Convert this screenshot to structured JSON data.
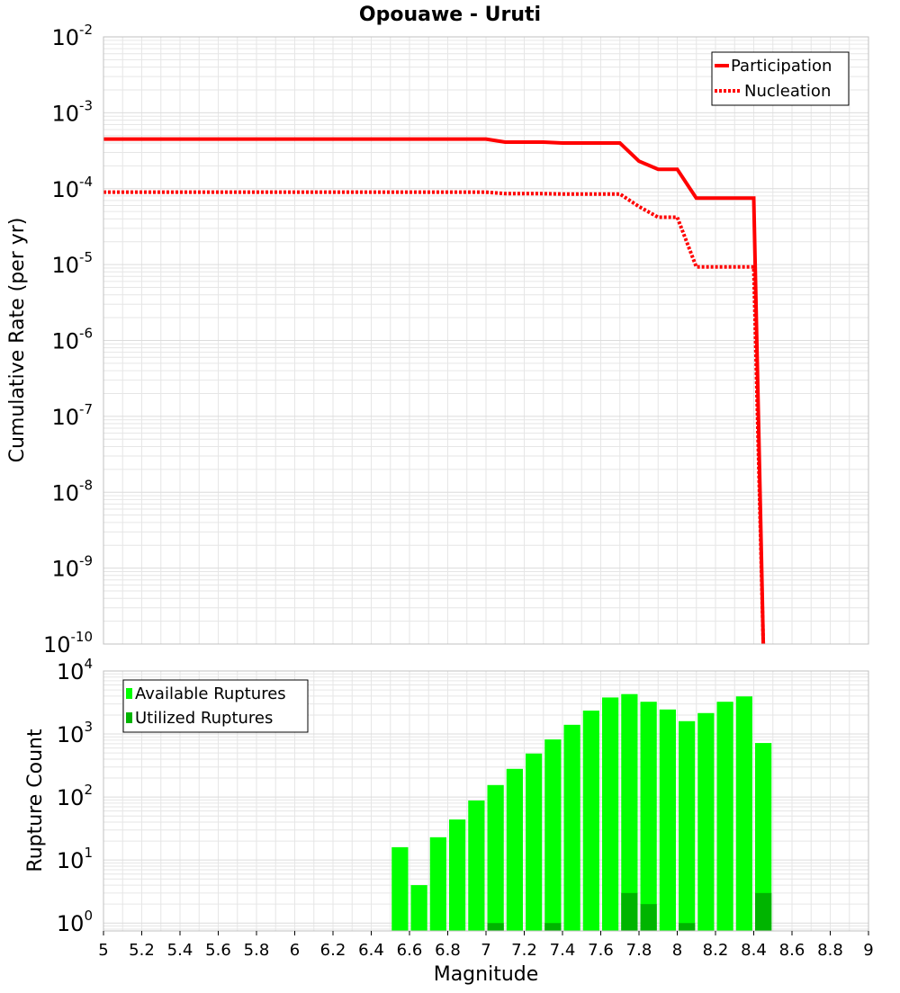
{
  "title": "Opouawe - Uruti",
  "colors": {
    "participation": "#ff0000",
    "nucleation": "#ff0000",
    "available": "#00ff00",
    "utilized": "#00b400",
    "grid": "#e6e6e6",
    "frame": "#c0c0c0"
  },
  "chart_data": [
    {
      "type": "line",
      "title": "Opouawe - Uruti",
      "xlabel": "",
      "ylabel": "Cumulative Rate (per yr)",
      "xlim": [
        5,
        9
      ],
      "ylim": [
        1e-10,
        0.01
      ],
      "yscale": "log",
      "y_ticks": [
        {
          "base": "10",
          "exp": "-10",
          "value": 1e-10
        },
        {
          "base": "10",
          "exp": "-9",
          "value": 1e-09
        },
        {
          "base": "10",
          "exp": "-8",
          "value": 1e-08
        },
        {
          "base": "10",
          "exp": "-7",
          "value": 1e-07
        },
        {
          "base": "10",
          "exp": "-6",
          "value": 1e-06
        },
        {
          "base": "10",
          "exp": "-5",
          "value": 1e-05
        },
        {
          "base": "10",
          "exp": "-4",
          "value": 0.0001
        },
        {
          "base": "10",
          "exp": "-3",
          "value": 0.001
        },
        {
          "base": "10",
          "exp": "-2",
          "value": 0.01
        }
      ],
      "legend": {
        "position": "top-right",
        "entries": [
          "Participation",
          "Nucleation"
        ]
      },
      "grid": true,
      "series": [
        {
          "name": "Participation",
          "style": "solid",
          "x": [
            5.0,
            7.0,
            7.1,
            7.3,
            7.4,
            7.5,
            7.6,
            7.7,
            7.8,
            7.9,
            8.0,
            8.1,
            8.2,
            8.3,
            8.4,
            8.45
          ],
          "y": [
            0.00045,
            0.00045,
            0.00041,
            0.00041,
            0.0004,
            0.0004,
            0.0004,
            0.0004,
            0.00023,
            0.00018,
            0.00018,
            7.5e-05,
            7.5e-05,
            7.5e-05,
            7.5e-05,
            1e-10
          ]
        },
        {
          "name": "Nucleation",
          "style": "dotted",
          "x": [
            5.0,
            7.0,
            7.1,
            7.3,
            7.4,
            7.5,
            7.6,
            7.7,
            7.8,
            7.9,
            8.0,
            8.1,
            8.2,
            8.3,
            8.4,
            8.45
          ],
          "y": [
            9e-05,
            9e-05,
            8.6e-05,
            8.6e-05,
            8.5e-05,
            8.5e-05,
            8.5e-05,
            8.5e-05,
            5.8e-05,
            4.2e-05,
            4.2e-05,
            9.3e-06,
            9.3e-06,
            9.3e-06,
            9.3e-06,
            1e-10
          ]
        }
      ]
    },
    {
      "type": "bar",
      "xlabel": "Magnitude",
      "ylabel": "Rupture Count",
      "xlim": [
        5,
        9
      ],
      "ylim": [
        0.75,
        10000
      ],
      "yscale": "log",
      "y_ticks": [
        {
          "base": "10",
          "exp": "0",
          "value": 1
        },
        {
          "base": "10",
          "exp": "1",
          "value": 10
        },
        {
          "base": "10",
          "exp": "2",
          "value": 100
        },
        {
          "base": "10",
          "exp": "3",
          "value": 1000
        },
        {
          "base": "10",
          "exp": "4",
          "value": 10000
        }
      ],
      "x_ticks": [
        "5",
        "5.2",
        "5.4",
        "5.6",
        "5.8",
        "6",
        "6.2",
        "6.4",
        "6.6",
        "6.8",
        "7",
        "7.2",
        "7.4",
        "7.6",
        "7.8",
        "8",
        "8.2",
        "8.4",
        "8.6",
        "8.8",
        "9"
      ],
      "legend": {
        "position": "top-left",
        "entries": [
          "Available Ruptures",
          "Utilized Ruptures"
        ]
      },
      "grid": true,
      "bin_width": 0.1,
      "series": [
        {
          "name": "Available Ruptures",
          "x": [
            6.55,
            6.65,
            6.75,
            6.85,
            6.95,
            7.05,
            7.15,
            7.25,
            7.35,
            7.45,
            7.55,
            7.65,
            7.75,
            7.85,
            7.95,
            8.05,
            8.15,
            8.25,
            8.35,
            8.45
          ],
          "values": [
            16,
            4,
            23,
            44,
            88,
            155,
            280,
            490,
            820,
            1400,
            2350,
            3800,
            4300,
            3250,
            2450,
            1600,
            2150,
            3250,
            3950,
            720
          ]
        },
        {
          "name": "Utilized Ruptures",
          "x": [
            7.05,
            7.35,
            7.75,
            7.85,
            8.05,
            8.45
          ],
          "values": [
            1,
            1,
            3,
            2,
            1,
            3
          ]
        }
      ]
    }
  ]
}
